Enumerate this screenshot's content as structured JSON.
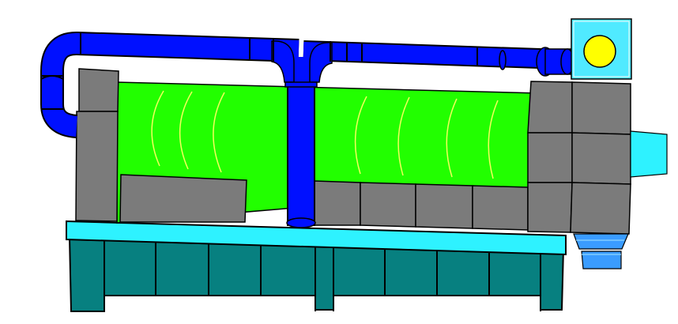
{
  "colors": {
    "background": "#ffffff",
    "duct_blue": "#0010ff",
    "drum_green": "#22ff00",
    "drum_lines": "#f2ff5a",
    "housing_gray": "#7b7b7b",
    "frame_cyan": "#2ef2ff",
    "base_teal": "#078080",
    "fan_box": "#50eaff",
    "fan_rotor": "#ffff00",
    "outlet_blue": "#3a9cff",
    "outline": "#000000"
  },
  "components": {
    "duct": "air-duct",
    "drum": "rotary-drum",
    "housing": "gray-housing",
    "frame": "cyan-frame",
    "base": "teal-base",
    "fan": "fan-unit",
    "outlet": "discharge-outlet"
  }
}
